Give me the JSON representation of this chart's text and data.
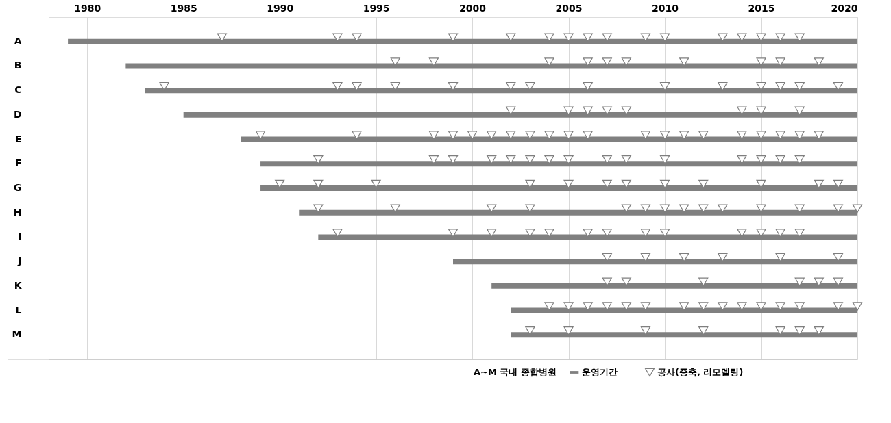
{
  "chart_data": {
    "type": "bar",
    "orientation": "horizontal",
    "legend_title": "A~M  국내 종합병원",
    "categories": [
      "A",
      "B",
      "C",
      "D",
      "E",
      "F",
      "G",
      "H",
      "I",
      "J",
      "K",
      "L",
      "M"
    ],
    "xlim": [
      1978,
      2020
    ],
    "xticks": [
      1980,
      1985,
      1990,
      1995,
      2000,
      2005,
      2010,
      2015,
      2020
    ],
    "grid": "x",
    "legend": "bottom right",
    "series": [
      {
        "name": "운영기간",
        "color": "#808080",
        "base": [
          1979,
          1982,
          1983,
          1985,
          1988,
          1989,
          1989,
          1991,
          1992,
          1999,
          2001,
          2002,
          2002
        ],
        "values": [
          41,
          38,
          37,
          35,
          32,
          31,
          31,
          29,
          28,
          21,
          19,
          18,
          18
        ]
      },
      {
        "name": "공사(증축, 리모델링)",
        "type": "scatter",
        "marker": "triangle",
        "color": "#7f7f7f",
        "values": [
          1987,
          1996,
          1984,
          2002,
          1989,
          1992,
          1990,
          1992,
          1993,
          2007,
          2007,
          2004,
          2003
        ]
      },
      {
        "type": "scatter",
        "marker": "triangle",
        "color": "#7f7f7f",
        "values": [
          1993,
          1998,
          1993,
          2005,
          1994,
          1998,
          1992,
          1996,
          1999,
          2009,
          2008,
          2005,
          2005
        ]
      },
      {
        "type": "scatter",
        "marker": "triangle",
        "color": "#7f7f7f",
        "values": [
          1994,
          2004,
          1994,
          2006,
          1998,
          1999,
          1995,
          2001,
          2001,
          2011,
          2012,
          2006,
          2009
        ]
      },
      {
        "type": "scatter",
        "marker": "triangle",
        "color": "#7f7f7f",
        "values": [
          1999,
          2006,
          1996,
          2007,
          1999,
          2001,
          2003,
          2003,
          2003,
          2013,
          2017,
          2007,
          2012
        ]
      },
      {
        "type": "scatter",
        "marker": "triangle",
        "color": "#7f7f7f",
        "values": [
          2002,
          2007,
          1999,
          2008,
          2000,
          2002,
          2005,
          2008,
          2004,
          2016,
          2018,
          2008,
          2016
        ]
      },
      {
        "type": "scatter",
        "marker": "triangle",
        "color": "#7f7f7f",
        "values": [
          2004,
          2008,
          2002,
          2014,
          2001,
          2003,
          2007,
          2009,
          2006,
          2019,
          2019,
          2009,
          2017
        ]
      },
      {
        "type": "scatter",
        "marker": "triangle",
        "color": "#7f7f7f",
        "values": [
          2005,
          2011,
          2003,
          2015,
          2002,
          2004,
          2008,
          2010,
          2007,
          null,
          null,
          2011,
          2018
        ]
      },
      {
        "type": "scatter",
        "marker": "triangle",
        "color": "#7f7f7f",
        "values": [
          2006,
          2015,
          2006,
          2017,
          2003,
          2005,
          2010,
          2011,
          2009,
          null,
          null,
          2012,
          null
        ]
      },
      {
        "type": "scatter",
        "marker": "triangle",
        "color": "#7f7f7f",
        "values": [
          2007,
          2016,
          2010,
          null,
          2004,
          2007,
          2012,
          2012,
          2010,
          null,
          null,
          2013,
          null
        ]
      },
      {
        "type": "scatter",
        "marker": "triangle",
        "color": "#7f7f7f",
        "values": [
          2009,
          2018,
          2013,
          null,
          2005,
          2008,
          2015,
          2013,
          2014,
          null,
          null,
          2014,
          null
        ]
      },
      {
        "type": "scatter",
        "marker": "triangle",
        "color": "#7f7f7f",
        "values": [
          2010,
          null,
          2015,
          null,
          2006,
          2010,
          2018,
          2015,
          2015,
          null,
          null,
          2015,
          null
        ]
      },
      {
        "type": "scatter",
        "marker": "triangle",
        "color": "#7f7f7f",
        "values": [
          2013,
          null,
          2016,
          null,
          2009,
          2014,
          2019,
          2017,
          2016,
          null,
          null,
          2016,
          null
        ]
      },
      {
        "type": "scatter",
        "marker": "triangle",
        "color": "#7f7f7f",
        "values": [
          2014,
          null,
          2017,
          null,
          2010,
          2015,
          null,
          2019,
          2017,
          null,
          null,
          2017,
          null
        ]
      },
      {
        "type": "scatter",
        "marker": "triangle",
        "color": "#7f7f7f",
        "values": [
          2015,
          null,
          2019,
          null,
          2011,
          2016,
          null,
          2020,
          null,
          null,
          null,
          2019,
          null
        ]
      },
      {
        "type": "scatter",
        "marker": "triangle",
        "color": "#7f7f7f",
        "values": [
          2016,
          null,
          null,
          null,
          2012,
          2017,
          null,
          null,
          null,
          null,
          null,
          2020,
          null
        ]
      },
      {
        "type": "scatter",
        "marker": "triangle",
        "color": "#7f7f7f",
        "values": [
          2017,
          null,
          null,
          null,
          2014,
          null,
          null,
          null,
          null,
          null,
          null,
          null,
          null
        ]
      },
      {
        "type": "scatter",
        "marker": "triangle",
        "color": "#7f7f7f",
        "values": [
          null,
          null,
          null,
          null,
          2015,
          null,
          null,
          null,
          null,
          null,
          null,
          null,
          null
        ]
      },
      {
        "type": "scatter",
        "marker": "triangle",
        "color": "#7f7f7f",
        "values": [
          null,
          null,
          null,
          null,
          2016,
          null,
          null,
          null,
          null,
          null,
          null,
          null,
          null
        ]
      },
      {
        "type": "scatter",
        "marker": "triangle",
        "color": "#7f7f7f",
        "values": [
          null,
          null,
          null,
          null,
          2017,
          null,
          null,
          null,
          null,
          null,
          null,
          null,
          null
        ]
      },
      {
        "type": "scatter",
        "marker": "triangle",
        "color": "#7f7f7f",
        "values": [
          null,
          null,
          null,
          null,
          2018,
          null,
          null,
          null,
          null,
          null,
          null,
          null,
          null
        ]
      }
    ]
  }
}
